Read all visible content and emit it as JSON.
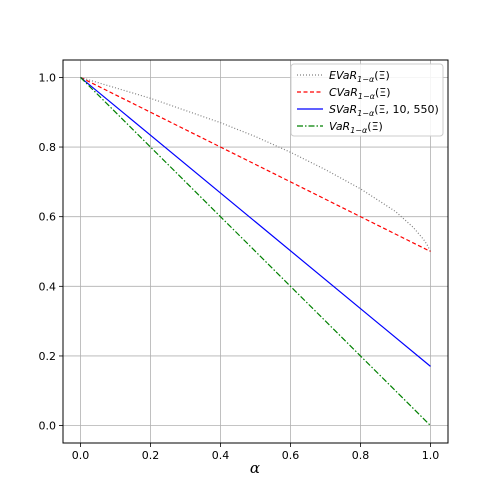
{
  "chart_data": {
    "type": "line",
    "xlabel": "α",
    "ylabel": "",
    "xlim": [
      -0.05,
      1.05
    ],
    "ylim": [
      -0.05,
      1.05
    ],
    "xticks": [
      "0.0",
      "0.2",
      "0.4",
      "0.6",
      "0.8",
      "1.0"
    ],
    "yticks": [
      "0.0",
      "0.2",
      "0.4",
      "0.6",
      "0.8",
      "1.0"
    ],
    "grid": true,
    "legend_position": "top-right",
    "series": [
      {
        "name": "EVaR1−α(Ξ)",
        "label_main": "EVaR",
        "label_sub": "1−α",
        "label_arg": "(Ξ)",
        "color": "#808080",
        "style": "dotted",
        "x": [
          0,
          0.1,
          0.2,
          0.3,
          0.4,
          0.5,
          0.6,
          0.7,
          0.8,
          0.9,
          0.95,
          0.98,
          0.99,
          1.0
        ],
        "y": [
          1.0,
          0.97,
          0.94,
          0.905,
          0.87,
          0.83,
          0.785,
          0.735,
          0.68,
          0.615,
          0.57,
          0.535,
          0.52,
          0.5
        ]
      },
      {
        "name": "CVaR1−α(Ξ)",
        "label_main": "CVaR",
        "label_sub": "1−α",
        "label_arg": "(Ξ)",
        "color": "#ff0000",
        "style": "dashed",
        "x": [
          0,
          1.0
        ],
        "y": [
          1.0,
          0.5
        ]
      },
      {
        "name": "SVaR1−α(Ξ, 10, 550)",
        "label_main": "SVaR",
        "label_sub": "1−α",
        "label_arg": "(Ξ, 10, 550)",
        "color": "#0000ff",
        "style": "solid",
        "x": [
          0,
          0.5,
          1.0
        ],
        "y": [
          1.0,
          0.585,
          0.17
        ]
      },
      {
        "name": "VaR1−α(Ξ)",
        "label_main": "VaR",
        "label_sub": "1−α",
        "label_arg": "(Ξ)",
        "color": "#008000",
        "style": "dashdot",
        "x": [
          0,
          1.0
        ],
        "y": [
          1.0,
          0.0
        ]
      }
    ]
  }
}
